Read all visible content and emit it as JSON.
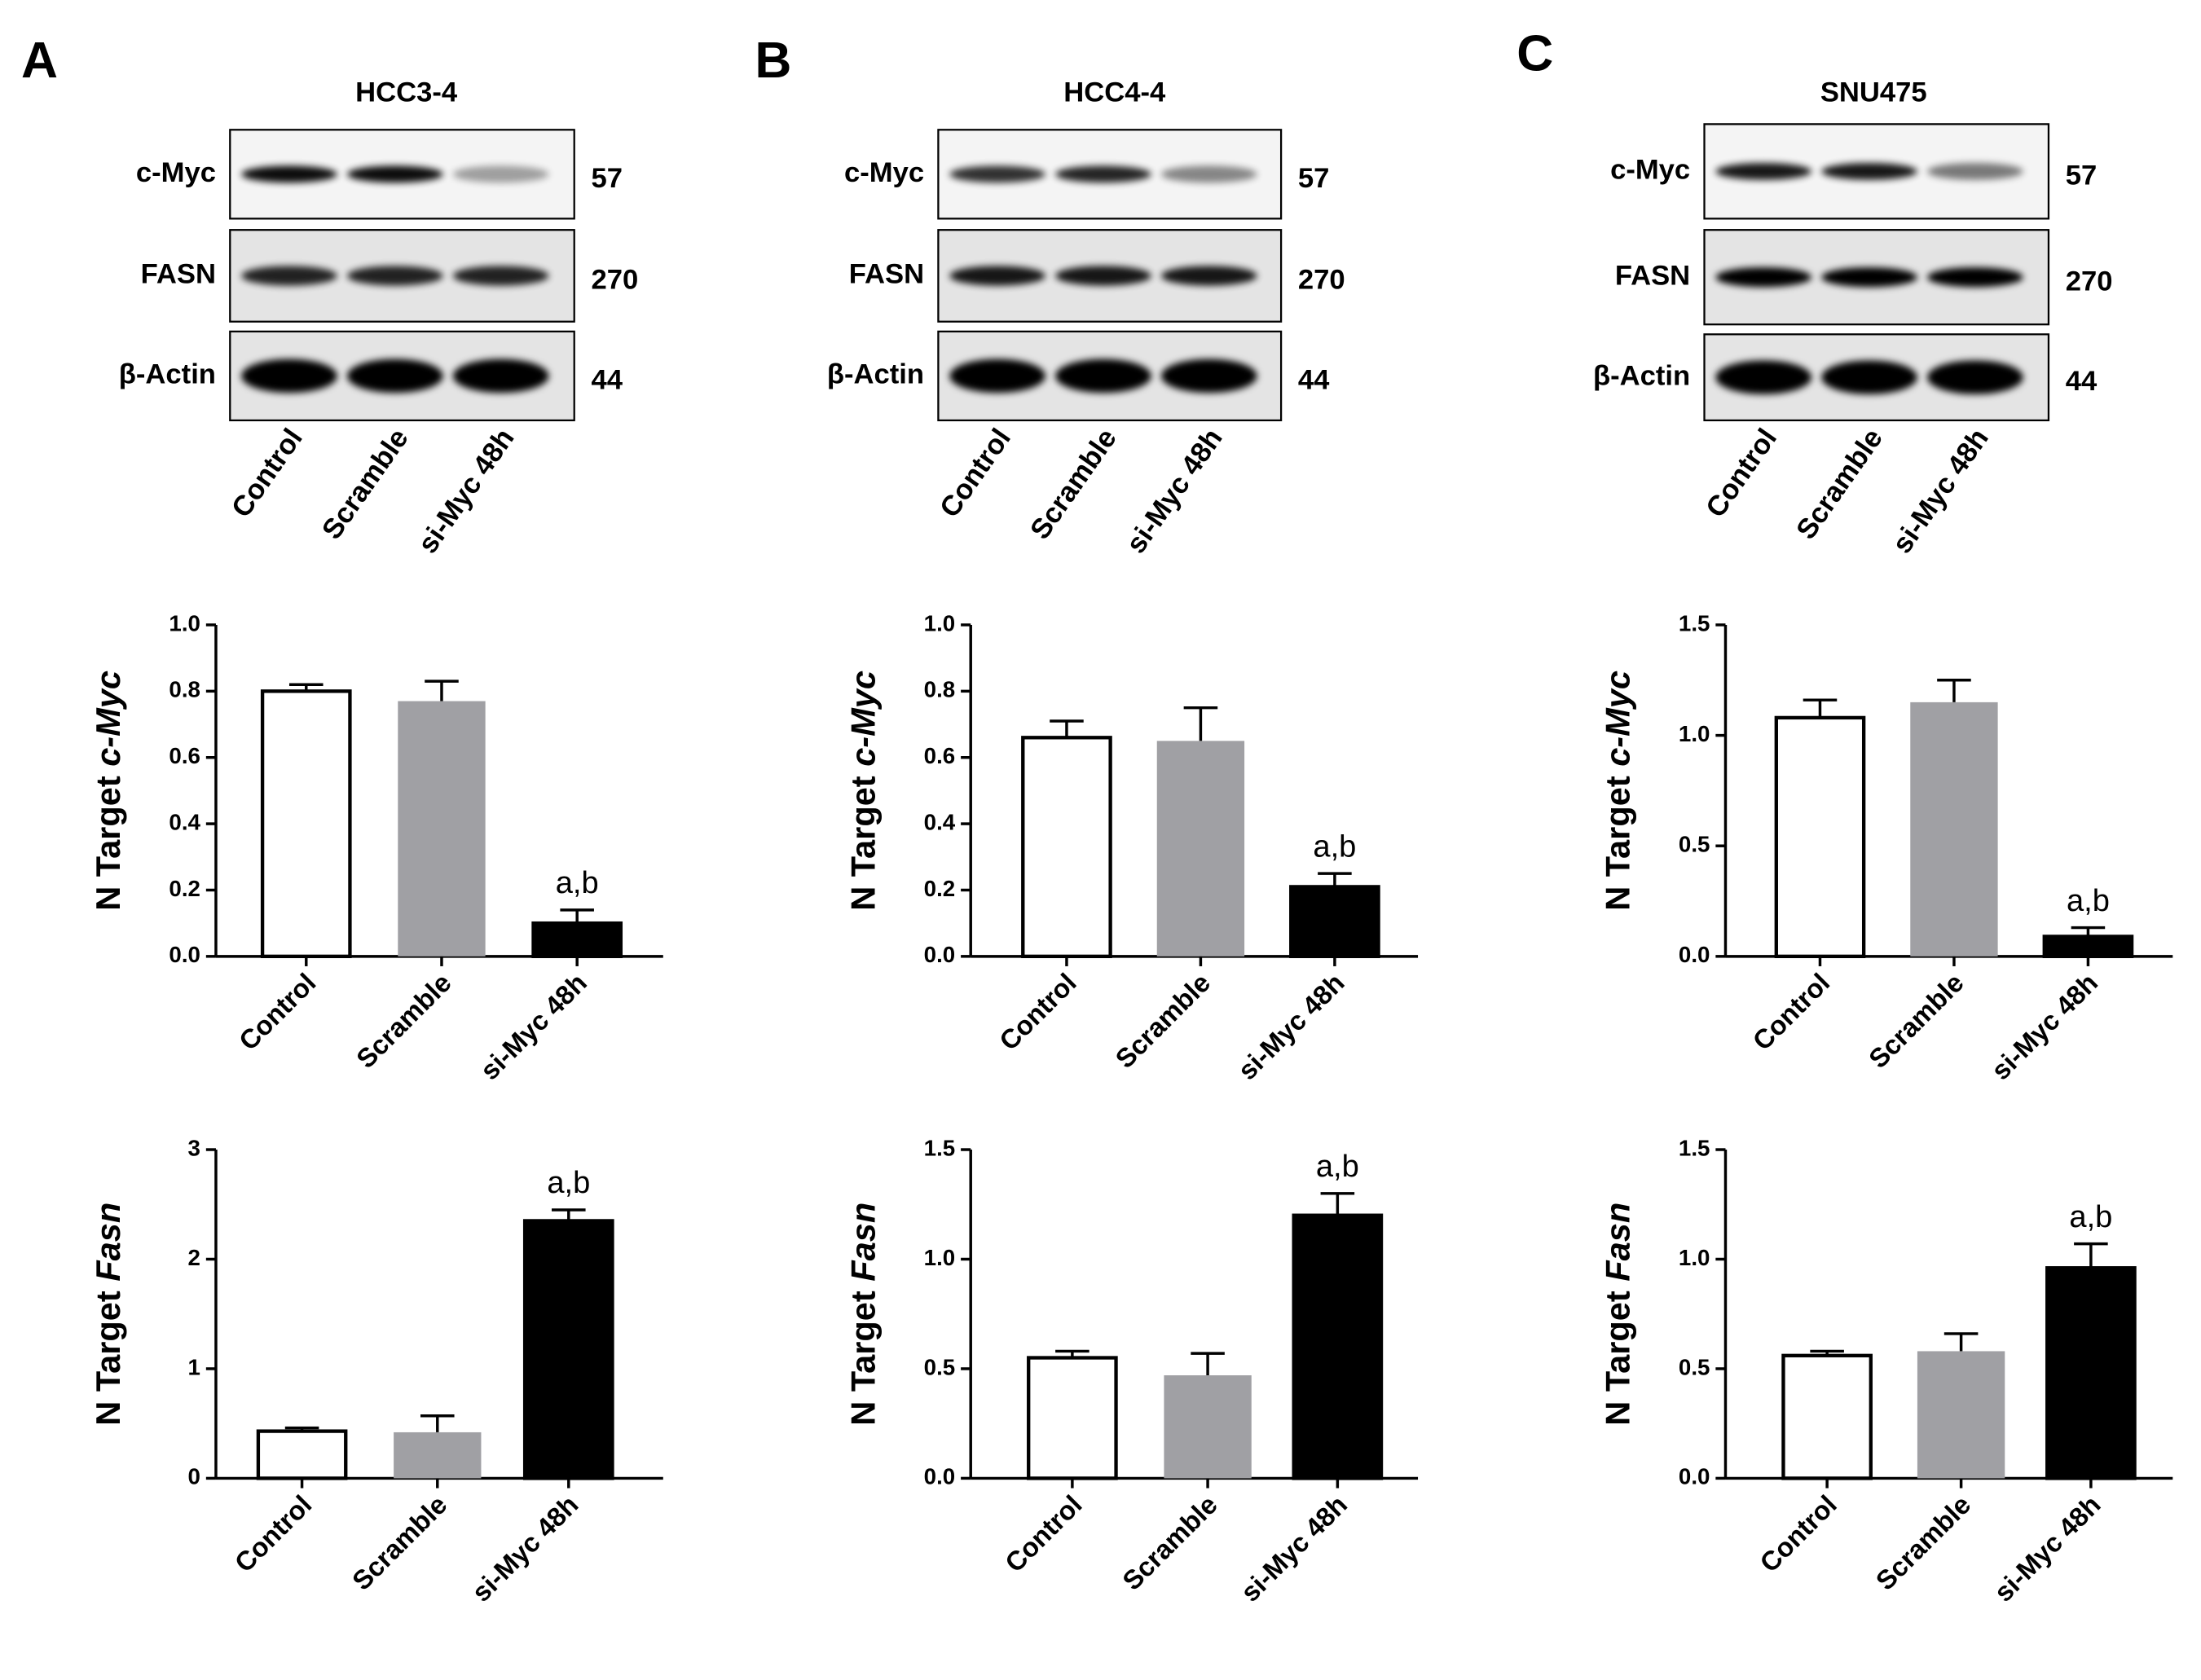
{
  "blots": [
    {
      "letter": "A",
      "title": "HCC3-4",
      "rows": [
        {
          "label": "c-Myc",
          "kda": 57
        },
        {
          "label": "FASN",
          "kda": 270
        },
        {
          "label": "β-Actin",
          "kda": 44
        }
      ],
      "lanes": [
        "Control",
        "Scramble",
        "si-Myc 48h"
      ]
    },
    {
      "letter": "B",
      "title": "HCC4-4",
      "rows": [
        {
          "label": "c-Myc",
          "kda": 57
        },
        {
          "label": "FASN",
          "kda": 270
        },
        {
          "label": "β-Actin",
          "kda": 44
        }
      ],
      "lanes": [
        "Control",
        "Scramble",
        "si-Myc 48h"
      ]
    },
    {
      "letter": "C",
      "title": "SNU475",
      "rows": [
        {
          "label": "c-Myc",
          "kda": 57
        },
        {
          "label": "FASN",
          "kda": 270
        },
        {
          "label": "β-Actin",
          "kda": 44
        }
      ],
      "lanes": [
        "Control",
        "Scramble",
        "si-Myc 48h"
      ]
    }
  ],
  "chart_data": [
    {
      "type": "bar",
      "ylabel": "N Target",
      "ylabel_gene": "c-Myc",
      "categories": [
        "Control",
        "Scramble",
        "si-Myc 48h"
      ],
      "values": [
        0.8,
        0.77,
        0.1
      ],
      "errors": [
        0.02,
        0.06,
        0.04
      ],
      "colors": [
        "#ffffff",
        "#a0a0a4",
        "#000000"
      ],
      "annotations": [
        null,
        null,
        "a,b"
      ],
      "ylim": [
        0,
        1
      ],
      "yticks": [
        {
          "value": 0,
          "label": "0.0"
        },
        0.2,
        0.4,
        0.6,
        0.8,
        {
          "value": 1,
          "label": "1.0"
        }
      ]
    },
    {
      "type": "bar",
      "ylabel": "N Target",
      "ylabel_gene": "Fasn",
      "categories": [
        "Control",
        "Scramble",
        "si-Myc 48h"
      ],
      "values": [
        0.43,
        0.42,
        2.35
      ],
      "errors": [
        0.03,
        0.15,
        0.1
      ],
      "colors": [
        "#ffffff",
        "#a0a0a4",
        "#000000"
      ],
      "annotations": [
        null,
        null,
        "a,b"
      ],
      "ylim": [
        0,
        3
      ],
      "yticks": [
        0,
        1,
        2,
        3
      ]
    },
    {
      "type": "bar",
      "ylabel": "N Target",
      "ylabel_gene": "c-Myc",
      "categories": [
        "Control",
        "Scramble",
        "si-Myc 48h"
      ],
      "values": [
        0.66,
        0.65,
        0.21
      ],
      "errors": [
        0.05,
        0.1,
        0.04
      ],
      "colors": [
        "#ffffff",
        "#a0a0a4",
        "#000000"
      ],
      "annotations": [
        null,
        null,
        "a,b"
      ],
      "ylim": [
        0,
        1
      ],
      "yticks": [
        {
          "value": 0,
          "label": "0.0"
        },
        0.2,
        0.4,
        0.6,
        0.8,
        {
          "value": 1,
          "label": "1.0"
        }
      ]
    },
    {
      "type": "bar",
      "ylabel": "N Target",
      "ylabel_gene": "Fasn",
      "categories": [
        "Control",
        "Scramble",
        "si-Myc 48h"
      ],
      "values": [
        0.55,
        0.47,
        1.2
      ],
      "errors": [
        0.03,
        0.1,
        0.1
      ],
      "colors": [
        "#ffffff",
        "#a0a0a4",
        "#000000"
      ],
      "annotations": [
        null,
        null,
        "a,b"
      ],
      "ylim": [
        0,
        1.5
      ],
      "yticks": [
        {
          "value": 0,
          "label": "0.0"
        },
        0.5,
        {
          "value": 1,
          "label": "1.0"
        },
        1.5
      ]
    },
    {
      "type": "bar",
      "ylabel": "N Target",
      "ylabel_gene": "c-Myc",
      "categories": [
        "Control",
        "Scramble",
        "si-Myc 48h"
      ],
      "values": [
        1.08,
        1.15,
        0.09
      ],
      "errors": [
        0.08,
        0.1,
        0.04
      ],
      "colors": [
        "#ffffff",
        "#a0a0a4",
        "#000000"
      ],
      "annotations": [
        null,
        null,
        "a,b"
      ],
      "ylim": [
        0,
        1.5
      ],
      "yticks": [
        {
          "value": 0,
          "label": "0.0"
        },
        0.5,
        {
          "value": 1,
          "label": "1.0"
        },
        1.5
      ]
    },
    {
      "type": "bar",
      "ylabel": "N Target",
      "ylabel_gene": "Fasn",
      "categories": [
        "Control",
        "Scramble",
        "si-Myc 48h"
      ],
      "values": [
        0.56,
        0.58,
        0.96
      ],
      "errors": [
        0.02,
        0.08,
        0.11
      ],
      "colors": [
        "#ffffff",
        "#a0a0a4",
        "#000000"
      ],
      "annotations": [
        null,
        null,
        "a,b"
      ],
      "ylim": [
        0,
        1.5
      ],
      "yticks": [
        {
          "value": 0,
          "label": "0.0"
        },
        0.5,
        {
          "value": 1,
          "label": "1.0"
        },
        1.5
      ]
    }
  ]
}
